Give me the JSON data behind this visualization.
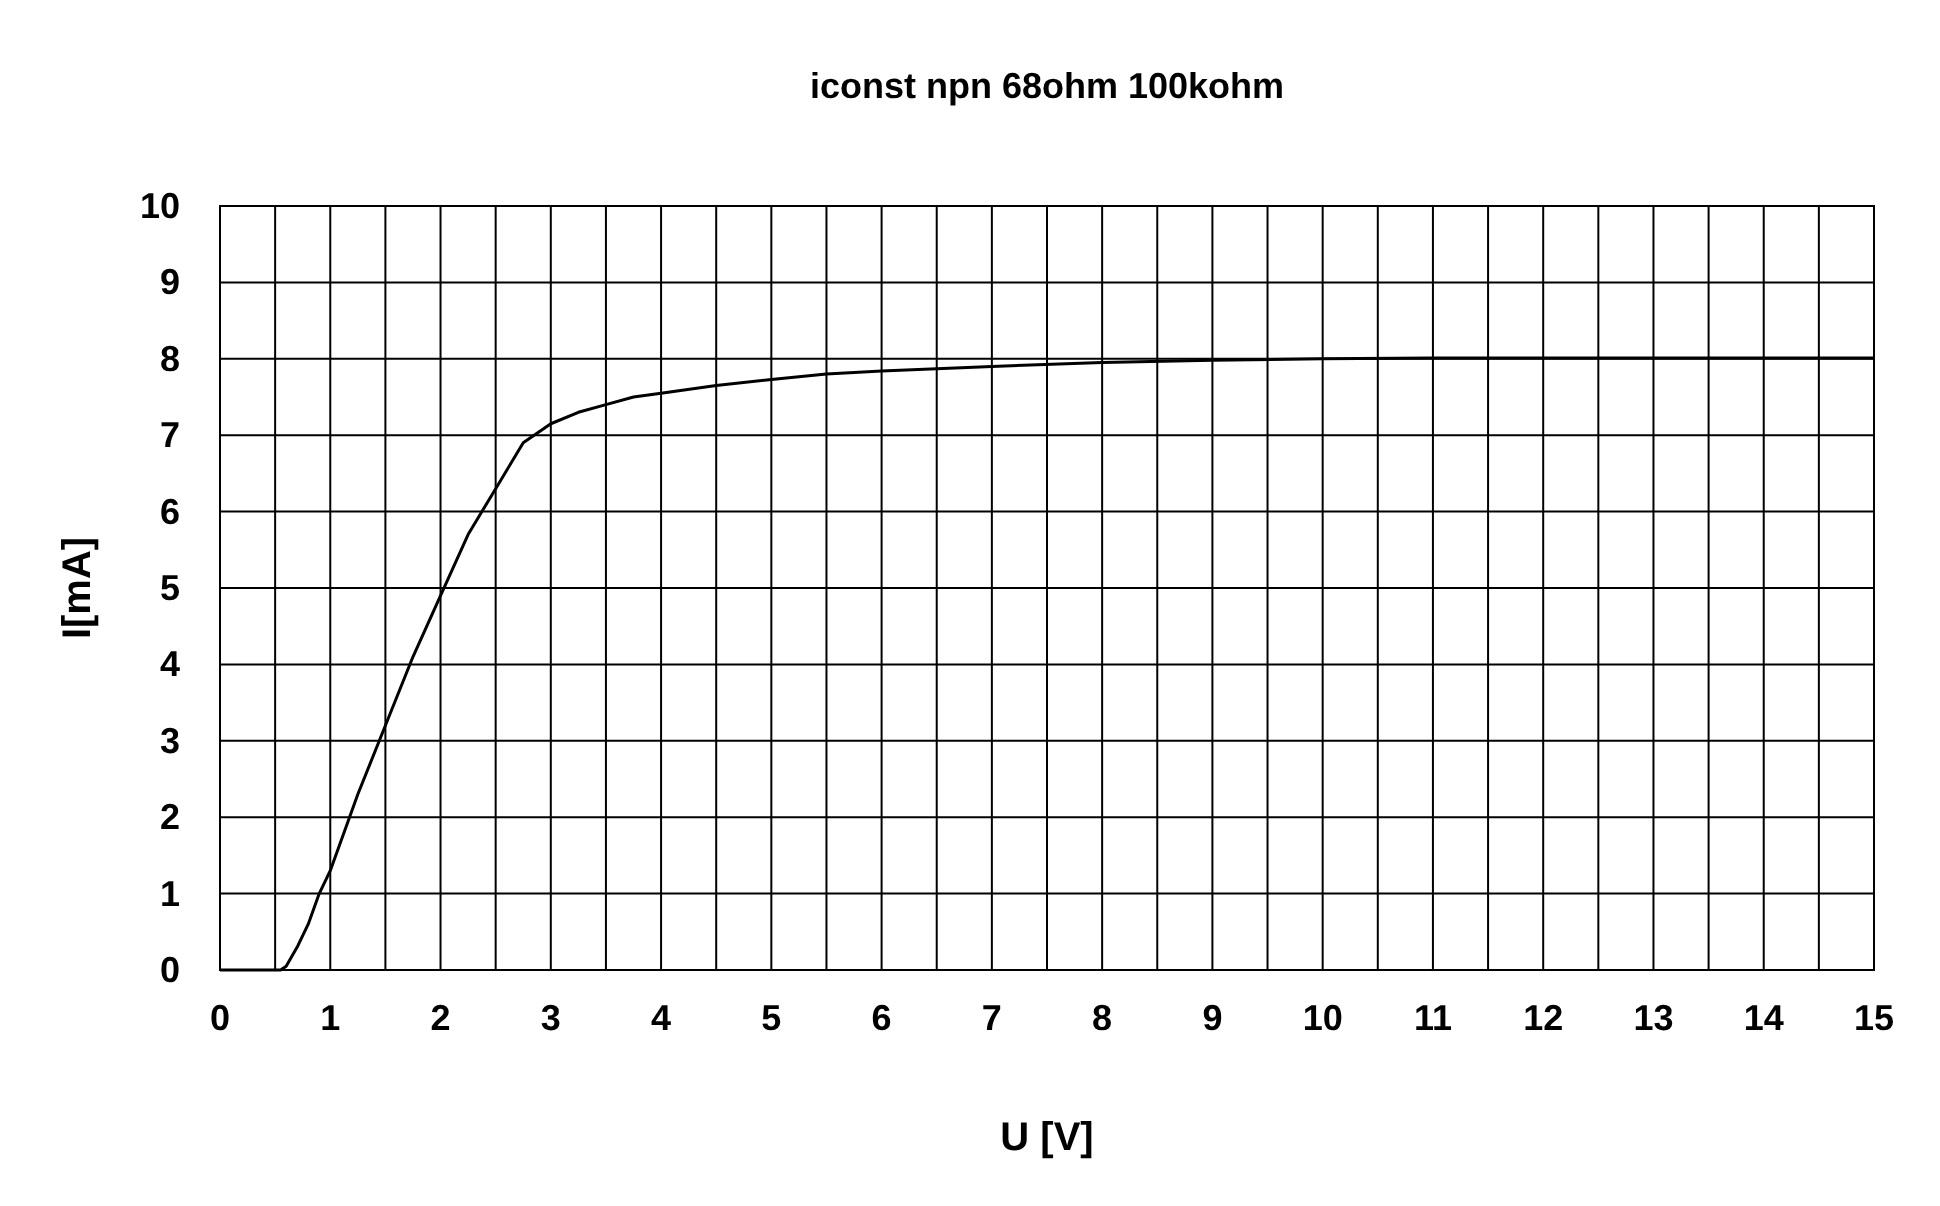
{
  "chart_data": {
    "type": "line",
    "title": "iconst npn 68ohm 100kohm",
    "xlabel": "U [V]",
    "ylabel": "I[mA]",
    "x": [
      0,
      0.55,
      0.6,
      0.7,
      0.8,
      0.9,
      1.0,
      1.25,
      1.5,
      1.75,
      2.0,
      2.25,
      2.5,
      2.75,
      3.0,
      3.25,
      3.5,
      3.75,
      4,
      4.5,
      5,
      5.5,
      6,
      7,
      8,
      9,
      10,
      11,
      12,
      13,
      14,
      15
    ],
    "series": [
      {
        "color": "#000000",
        "values": [
          0,
          0,
          0.05,
          0.3,
          0.6,
          1.0,
          1.3,
          2.3,
          3.2,
          4.1,
          4.9,
          5.7,
          6.3,
          6.9,
          7.15,
          7.3,
          7.4,
          7.5,
          7.55,
          7.65,
          7.73,
          7.8,
          7.84,
          7.9,
          7.95,
          7.98,
          8.0,
          8.01,
          8.01,
          8.01,
          8.01,
          8.01
        ]
      }
    ],
    "xlim": [
      0,
      15
    ],
    "xticks": [
      0,
      {
        "value": 0.5,
        "label": null
      },
      1,
      {
        "value": 1.5,
        "label": null
      },
      2,
      {
        "value": 2.5,
        "label": null
      },
      3,
      {
        "value": 3.5,
        "label": null
      },
      4,
      {
        "value": 4.5,
        "label": null
      },
      5,
      {
        "value": 5.5,
        "label": null
      },
      6,
      {
        "value": 6.5,
        "label": null
      },
      7,
      {
        "value": 7.5,
        "label": null
      },
      8,
      {
        "value": 8.5,
        "label": null
      },
      9,
      {
        "value": 9.5,
        "label": null
      },
      10,
      {
        "value": 10.5,
        "label": null
      },
      11,
      {
        "value": 11.5,
        "label": null
      },
      12,
      {
        "value": 12.5,
        "label": null
      },
      13,
      {
        "value": 13.5,
        "label": null
      },
      14,
      {
        "value": 14.5,
        "label": null
      },
      15
    ],
    "ylim": [
      0,
      10
    ],
    "yticks": [
      0,
      1,
      2,
      3,
      4,
      5,
      6,
      7,
      8,
      9,
      10
    ],
    "grid": true,
    "marker": "none",
    "line_style": "solid"
  }
}
